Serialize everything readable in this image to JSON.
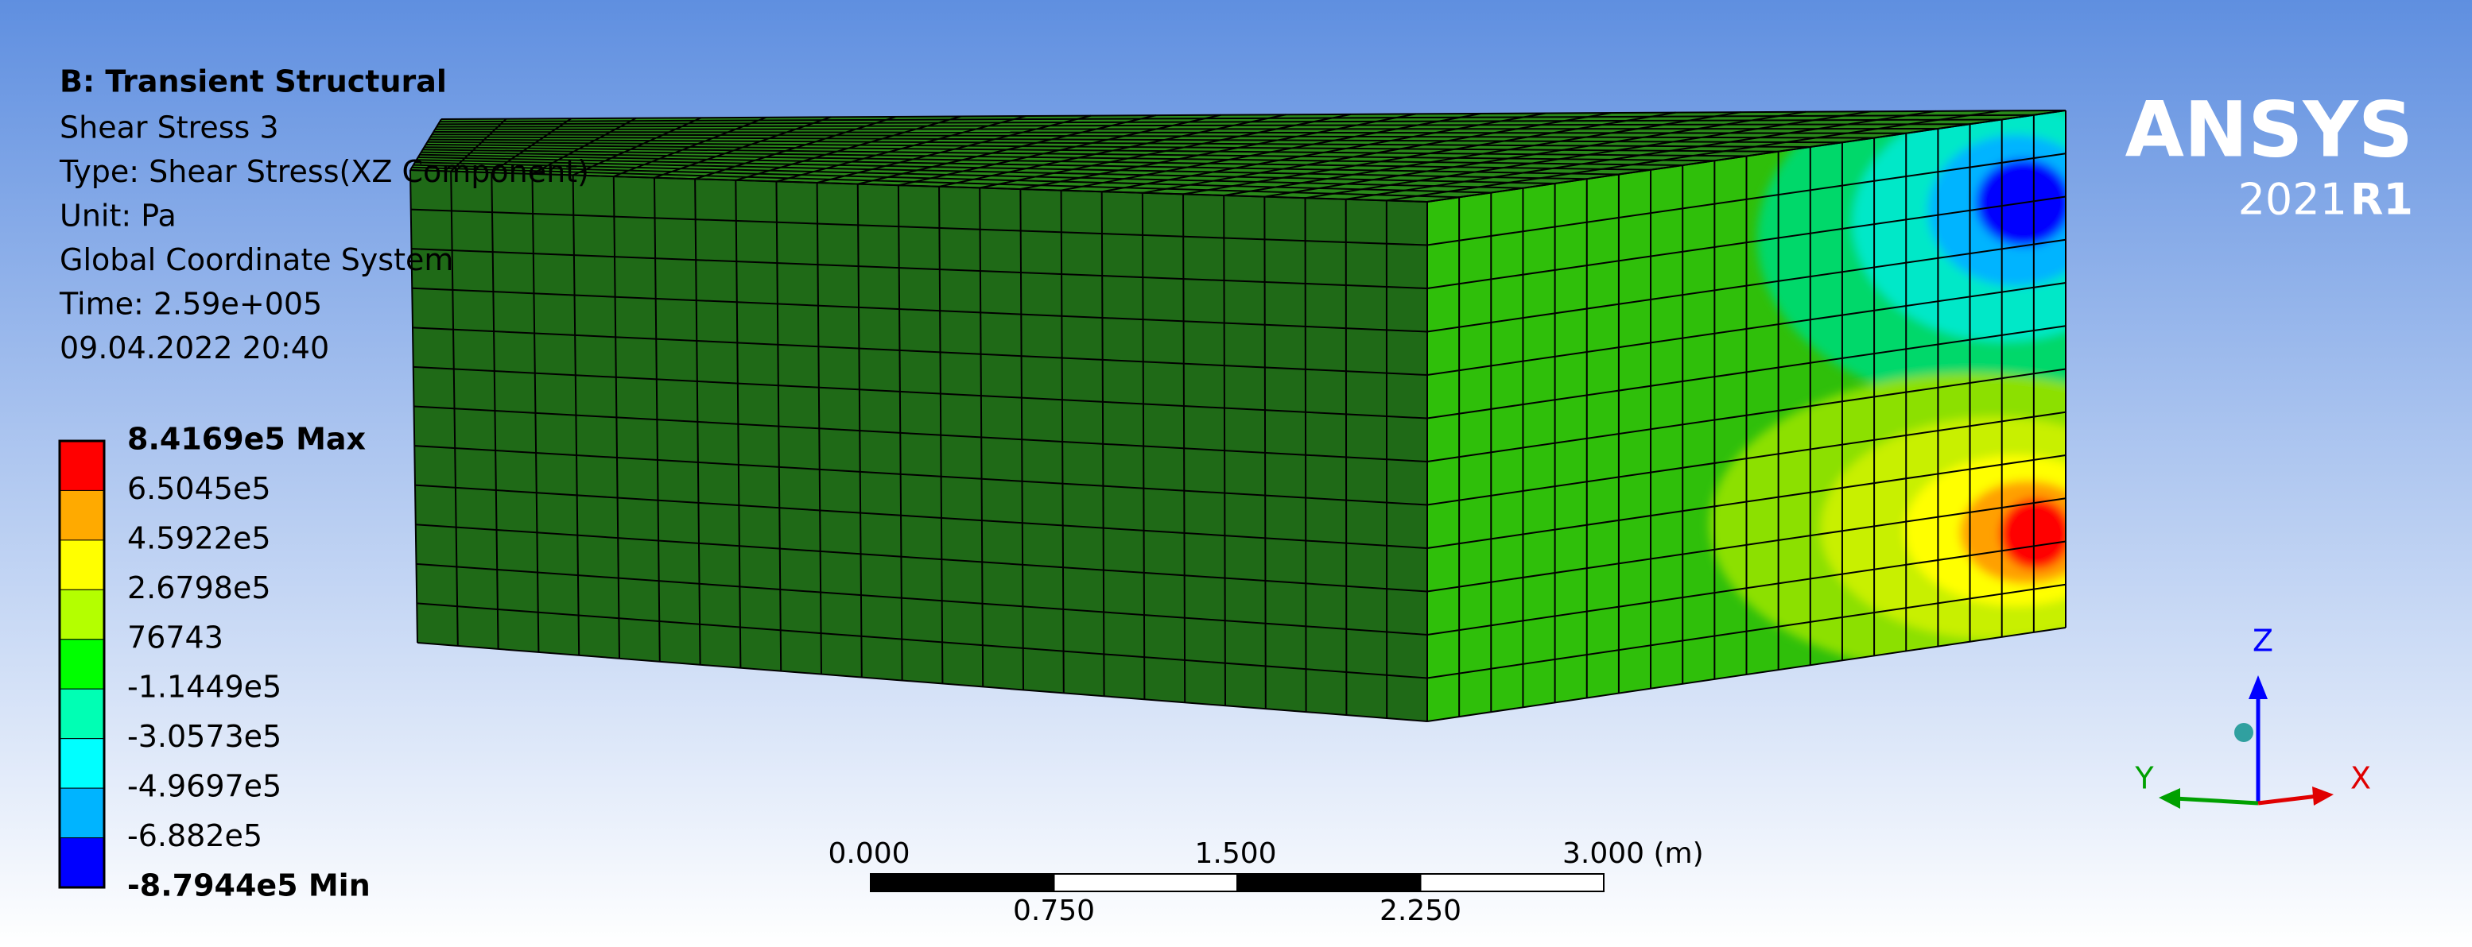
{
  "header": {
    "title": "B: Transient Structural",
    "lines": [
      "Shear Stress 3",
      "Type: Shear Stress(XZ Component)",
      "Unit: Pa",
      "Global Coordinate System",
      "Time: 2.59e+005",
      "09.04.2022 20:40"
    ]
  },
  "legend": {
    "labels": [
      "8.4169e5 Max",
      "6.5045e5",
      "4.5922e5",
      "2.6798e5",
      "76743",
      "-1.1449e5",
      "-3.0573e5",
      "-4.9697e5",
      "-6.882e5",
      "-8.7944e5 Min"
    ]
  },
  "scale_bar": {
    "top_labels": [
      "0.000",
      "1.500",
      "3.000 (m)"
    ],
    "bottom_labels": [
      "0.750",
      "2.250"
    ]
  },
  "logo": {
    "name": "ANSYS",
    "version": "2021",
    "release": "R1"
  },
  "triad": {
    "z": "Z",
    "y": "Y",
    "x": "X"
  }
}
